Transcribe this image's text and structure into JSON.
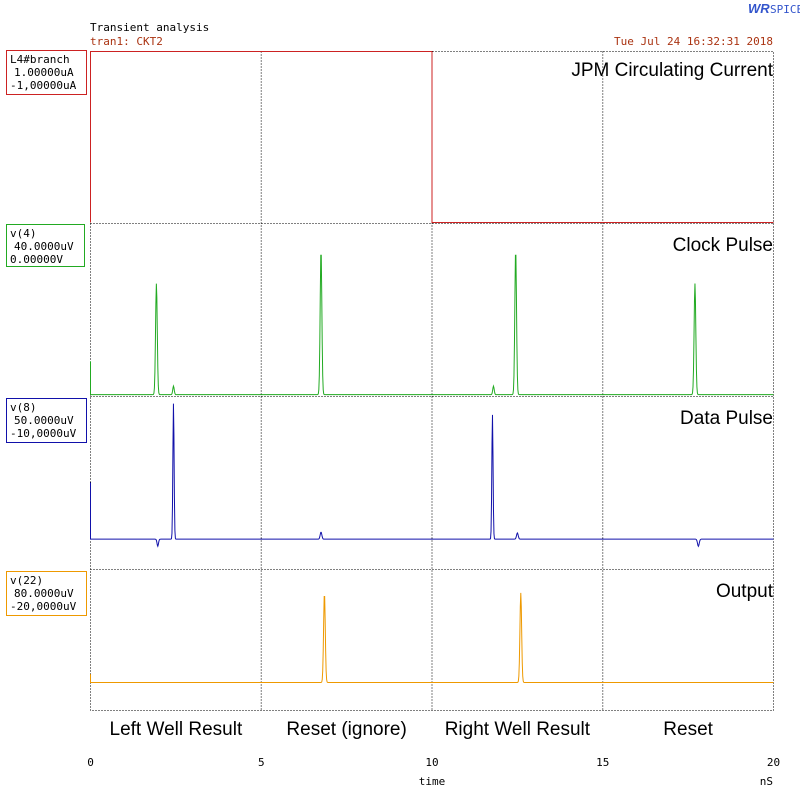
{
  "header": {
    "analysis_title": "Transient analysis",
    "subtitle": "tran1: CKT2",
    "timestamp": "Tue Jul 24 16:32:31 2018",
    "logo_mark": "WR",
    "logo_text": "SPICE",
    "colors": {
      "text": "#000000",
      "subtitle": "#aa3311",
      "timestamp": "#aa3311",
      "logo": "#3355cc"
    }
  },
  "chart_data": [
    {
      "type": "line",
      "signal": "L4#branch",
      "title": "JPM Circulating Current",
      "max_label": "1.00000uA",
      "min_label": "-1,00000uA",
      "ylim": [
        -1.0,
        1.0
      ],
      "unit": "uA",
      "color": "#cc2222",
      "series": [
        {
          "name": "L4#branch",
          "x": [
            0,
            0,
            10,
            10,
            20
          ],
          "y": [
            -1.0,
            1.0,
            1.0,
            -1.0,
            -1.0
          ]
        }
      ]
    },
    {
      "type": "line",
      "signal": "v(4)",
      "title": "Clock Pulse",
      "max_label": "40.0000uV",
      "min_label": "0.00000V",
      "ylim": [
        0,
        40
      ],
      "unit": "uV",
      "color": "#22aa22",
      "baseline": 0.2,
      "start_spike": [
        0.0,
        8
      ],
      "pulses": [
        [
          1.93,
          26,
          0.035
        ],
        [
          2.43,
          2,
          0.03
        ],
        [
          6.75,
          34,
          0.035
        ],
        [
          11.8,
          2,
          0.03
        ],
        [
          12.45,
          34,
          0.035
        ],
        [
          17.7,
          26,
          0.035
        ]
      ]
    },
    {
      "type": "line",
      "signal": "v(8)",
      "title": "Data Pulse",
      "max_label": "50.0000uV",
      "min_label": "-10,0000uV",
      "ylim": [
        -10,
        50
      ],
      "unit": "uV",
      "color": "#1111aa",
      "baseline": 0.0,
      "start_spike": [
        0.0,
        20
      ],
      "pulses": [
        [
          1.97,
          -2.5,
          0.03
        ],
        [
          2.43,
          48,
          0.025
        ],
        [
          6.75,
          2.5,
          0.035
        ],
        [
          11.77,
          44,
          0.025
        ],
        [
          12.5,
          2.2,
          0.035
        ],
        [
          17.8,
          -2.5,
          0.035
        ]
      ]
    },
    {
      "type": "line",
      "signal": "v(22)",
      "title": "Output",
      "max_label": "80.0000uV",
      "min_label": "-20,0000uV",
      "ylim": [
        -20,
        80
      ],
      "unit": "uV",
      "color": "#ee9900",
      "baseline": 0.0,
      "start_spike": [
        0.0,
        6
      ],
      "pulses": [
        [
          6.85,
          64,
          0.035
        ],
        [
          12.6,
          64,
          0.035
        ]
      ]
    }
  ],
  "x_axis": {
    "label": "time",
    "unit": "nS",
    "xlim": [
      0,
      20
    ],
    "ticks": [
      0,
      5,
      10,
      15,
      20
    ],
    "tick_labels": [
      "0",
      "5",
      "10",
      "15",
      "20"
    ]
  },
  "region_labels": [
    "Left Well Result",
    "Reset (ignore)",
    "Right Well Result",
    "Reset"
  ]
}
